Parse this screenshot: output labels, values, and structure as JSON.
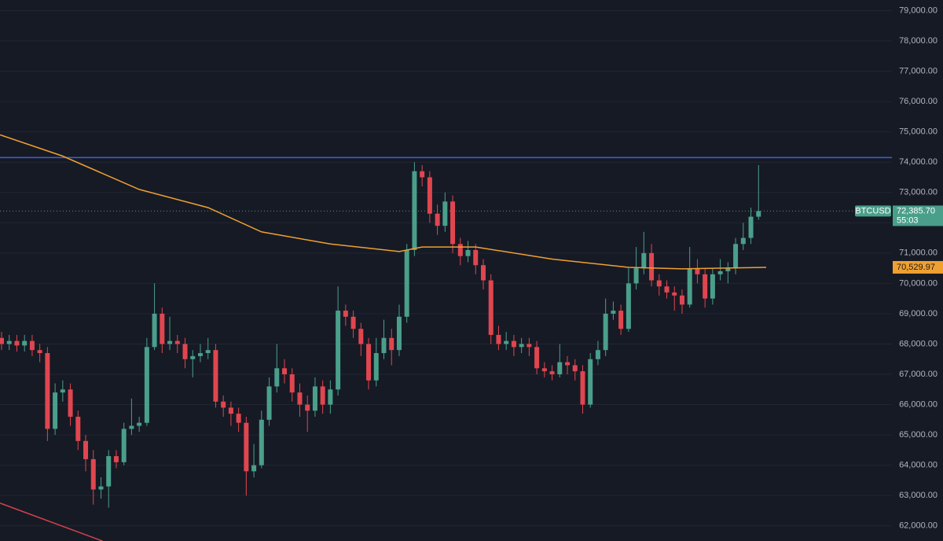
{
  "chart_data": {
    "type": "candlestick",
    "symbol": "BTCUSD",
    "timer": "55:03",
    "last_price": 72385.7,
    "last_price_label": "72,385.70",
    "up_color": "#4a9f8a",
    "down_color": "#e0464f",
    "grid": true,
    "ylim": [
      61500,
      79350
    ],
    "yticks": [
      {
        "value": 62000,
        "label": "62,000.00"
      },
      {
        "value": 63000,
        "label": "63,000.00"
      },
      {
        "value": 64000,
        "label": "64,000.00"
      },
      {
        "value": 65000,
        "label": "65,000.00"
      },
      {
        "value": 66000,
        "label": "66,000.00"
      },
      {
        "value": 67000,
        "label": "67,000.00"
      },
      {
        "value": 68000,
        "label": "68,000.00"
      },
      {
        "value": 69000,
        "label": "69,000.00"
      },
      {
        "value": 70000,
        "label": "70,000.00"
      },
      {
        "value": 71000,
        "label": "71,000.00"
      },
      {
        "value": 72000,
        "label": "72,000.00"
      },
      {
        "value": 73000,
        "label": "73,000.00"
      },
      {
        "value": 74000,
        "label": "74,000.00"
      },
      {
        "value": 75000,
        "label": "75,000.00"
      },
      {
        "value": 76000,
        "label": "76,000.00"
      },
      {
        "value": 77000,
        "label": "77,000.00"
      },
      {
        "value": 78000,
        "label": "78,000.00"
      },
      {
        "value": 79000,
        "label": "79,000.00"
      }
    ],
    "open": [
      68200,
      68000,
      68100,
      67950,
      68100,
      67800,
      67700,
      65200,
      66400,
      66500,
      65600,
      64800,
      64200,
      63200,
      63300,
      64300,
      64100,
      65200,
      65300,
      65400,
      67900,
      69000,
      68000,
      68100,
      68000,
      67500,
      67600,
      67700,
      67800,
      66100,
      65900,
      65700,
      65400,
      63800,
      64000,
      65500,
      66600,
      67200,
      67000,
      66400,
      66000,
      65800,
      66600,
      66000,
      66500,
      69100,
      68900,
      68500,
      68000,
      66800,
      67700,
      68200,
      67800,
      68900,
      71100,
      73700,
      73500,
      72300,
      71900,
      72700,
      71300,
      70900,
      71100,
      70600,
      70100,
      68300,
      68000,
      68100,
      67900,
      68000,
      67900,
      67200,
      67100,
      67000,
      67400,
      67300,
      67100,
      66000,
      67500,
      67800,
      69000,
      69100,
      68500,
      70000,
      70500,
      71000,
      70100,
      69900,
      69700,
      69600,
      69300,
      70500,
      70300,
      69500,
      70300,
      70400,
      70500,
      71300,
      71500,
      72200
    ],
    "high": [
      68400,
      68300,
      68300,
      68300,
      68300,
      68000,
      67900,
      66700,
      66800,
      66700,
      65800,
      65000,
      64500,
      63600,
      64500,
      64500,
      65400,
      66200,
      65600,
      68200,
      70000,
      69200,
      68900,
      68300,
      68200,
      67800,
      68000,
      68200,
      68000,
      66300,
      66100,
      65900,
      65600,
      64700,
      65800,
      66900,
      68000,
      67500,
      67200,
      66700,
      66300,
      66900,
      66800,
      66800,
      69900,
      69300,
      69100,
      68700,
      68200,
      68200,
      68800,
      68500,
      69300,
      71300,
      74000,
      73900,
      73700,
      72600,
      73000,
      72900,
      71500,
      71400,
      71300,
      70800,
      70300,
      68600,
      68400,
      68300,
      68200,
      68200,
      68100,
      67400,
      67300,
      68000,
      67600,
      67500,
      67300,
      67700,
      68100,
      69500,
      69400,
      69300,
      70500,
      71200,
      71700,
      71300,
      70300,
      70100,
      69900,
      69800,
      71200,
      70800,
      70500,
      70500,
      70800,
      70700,
      71500,
      72000,
      72500,
      73900
    ],
    "low": [
      67800,
      67800,
      67750,
      67750,
      67600,
      67400,
      64800,
      65000,
      66100,
      65300,
      64500,
      63800,
      62700,
      62900,
      62600,
      63900,
      64000,
      65000,
      65100,
      65300,
      67800,
      67700,
      67800,
      67700,
      67200,
      66900,
      67400,
      67500,
      65900,
      65600,
      65300,
      65100,
      63000,
      63600,
      63900,
      65300,
      66400,
      66700,
      66100,
      65600,
      65100,
      65600,
      65700,
      65700,
      66300,
      68600,
      68200,
      67600,
      66500,
      66600,
      67500,
      67300,
      67600,
      68700,
      70900,
      73200,
      72000,
      71600,
      71700,
      71000,
      70600,
      70700,
      70300,
      69800,
      68000,
      67800,
      67800,
      67600,
      67700,
      67600,
      67000,
      66900,
      66800,
      66900,
      67000,
      66800,
      65700,
      65900,
      67300,
      67600,
      68800,
      68300,
      68400,
      69800,
      70300,
      69900,
      69600,
      69500,
      69100,
      69000,
      69200,
      70000,
      69200,
      69300,
      70100,
      70000,
      70300,
      71100,
      71300,
      72100
    ],
    "close": [
      68000,
      68100,
      67950,
      68100,
      67800,
      67700,
      65200,
      66400,
      66500,
      65600,
      64800,
      64200,
      63200,
      63300,
      64300,
      64100,
      65200,
      65300,
      65400,
      67900,
      69000,
      68000,
      68100,
      68000,
      67500,
      67600,
      67700,
      67800,
      66100,
      65900,
      65700,
      65400,
      63800,
      64000,
      65500,
      66600,
      67200,
      67000,
      66400,
      66000,
      65800,
      66600,
      66000,
      66500,
      69100,
      68900,
      68500,
      68000,
      66800,
      67700,
      68200,
      67800,
      68900,
      71100,
      73700,
      73500,
      72300,
      71900,
      72700,
      71300,
      70900,
      71100,
      70600,
      70100,
      68300,
      68000,
      68100,
      67900,
      68000,
      67900,
      67200,
      67100,
      67000,
      67400,
      67300,
      67100,
      66000,
      67500,
      67800,
      69000,
      69100,
      68500,
      70000,
      70500,
      71000,
      70100,
      69900,
      69700,
      69600,
      69300,
      70500,
      70300,
      69500,
      70300,
      70400,
      70500,
      71300,
      71500,
      72200,
      72385.7
    ],
    "moving_average": {
      "color": "#f0a030",
      "label": "70,529.97",
      "last": 70529.97,
      "index": [
        -0.2,
        8,
        18,
        27,
        34,
        43,
        52,
        55,
        62,
        72,
        82,
        89,
        100
      ],
      "values": [
        74900,
        74200,
        73100,
        72500,
        71700,
        71300,
        71050,
        71200,
        71200,
        70800,
        70530,
        70480,
        70529.97
      ]
    },
    "resistance": {
      "color": "#3f5fd8",
      "value": 74150
    },
    "trendline": {
      "color": "#d9434c",
      "index": [
        -0.2,
        13.2
      ],
      "values": [
        62750,
        61500
      ]
    }
  }
}
